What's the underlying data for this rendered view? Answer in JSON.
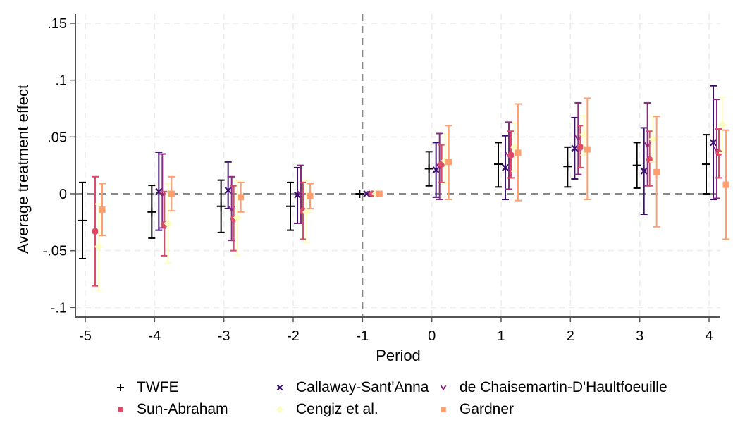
{
  "chart_data": {
    "type": "scatter",
    "subtype": "event-study coefficient plot with confidence intervals",
    "title": "",
    "xlabel": "Period",
    "ylabel": "Average treatment effect",
    "xlim": [
      -5.25,
      4.25
    ],
    "ylim": [
      -0.108,
      0.16
    ],
    "x_ticks": [
      -5,
      -4,
      -3,
      -2,
      -1,
      0,
      1,
      2,
      3,
      4
    ],
    "x_tick_labels": [
      "-5",
      "-4",
      "-3",
      "-2",
      "-1",
      "0",
      "1",
      "2",
      "3",
      "4"
    ],
    "y_ticks": [
      -0.1,
      -0.05,
      0,
      0.05,
      0.1,
      0.15
    ],
    "y_tick_labels": [
      "-.1",
      "-.05",
      "0",
      ".05",
      ".1",
      ".15"
    ],
    "grid": true,
    "reference_lines": [
      {
        "axis": "y",
        "value": 0,
        "style": "dashed"
      },
      {
        "axis": "x",
        "value": -1,
        "style": "dashed"
      }
    ],
    "legend_position": "bottom",
    "series": [
      {
        "name": "TWFE",
        "marker": "plus",
        "color": "#000000",
        "x": [
          -5,
          -4,
          -3,
          -2,
          -1,
          0,
          1,
          2,
          3,
          4
        ],
        "y": [
          -0.0235,
          -0.016,
          -0.011,
          -0.011,
          0.0,
          0.022,
          0.026,
          0.024,
          0.025,
          0.026
        ],
        "ci_low": [
          -0.057,
          -0.039,
          -0.034,
          -0.032,
          0.0,
          0.007,
          0.006,
          0.006,
          0.005,
          0.0
        ],
        "ci_high": [
          0.01,
          0.0074,
          0.012,
          0.01,
          0.0,
          0.037,
          0.045,
          0.041,
          0.045,
          0.052
        ]
      },
      {
        "name": "Callaway-Sant'Anna",
        "marker": "x",
        "color": "#3b0f70",
        "x": [
          -5,
          -4,
          -3,
          -2,
          -1,
          0,
          1,
          2,
          3,
          4
        ],
        "y": [
          null,
          0.002,
          0.003,
          -0.001,
          0.0,
          0.021,
          0.023,
          0.04,
          0.02,
          0.045
        ],
        "ci_low": [
          null,
          -0.032,
          -0.013,
          -0.026,
          0.0,
          -0.003,
          -0.005,
          0.013,
          -0.018,
          -0.005
        ],
        "ci_high": [
          null,
          0.0366,
          0.028,
          0.023,
          0.0,
          0.045,
          0.051,
          0.067,
          0.058,
          0.095
        ]
      },
      {
        "name": "de Chaisemartin-D'Haultfoeuille",
        "marker": "v",
        "color": "#8c2981",
        "x": [
          -5,
          -4,
          -3,
          -2,
          -1,
          0,
          1,
          2,
          3,
          4
        ],
        "y": [
          null,
          0.0,
          -0.013,
          0.0,
          0.0,
          0.024,
          0.034,
          0.049,
          0.043,
          0.039
        ],
        "ci_low": [
          null,
          -0.03,
          -0.041,
          -0.026,
          0.0,
          -0.005,
          0.004,
          0.017,
          0.007,
          -0.004
        ],
        "ci_high": [
          null,
          0.035,
          0.015,
          0.025,
          0.0,
          0.053,
          0.063,
          0.08,
          0.08,
          0.083
        ]
      },
      {
        "name": "Sun-Abraham",
        "marker": "circle",
        "color": "#de4968",
        "x": [
          -5,
          -4,
          -3,
          -2,
          -1,
          0,
          1,
          2,
          3,
          4
        ],
        "y": [
          -0.033,
          -0.027,
          -0.022,
          -0.015,
          0.0,
          0.026,
          0.034,
          0.041,
          0.03,
          0.036
        ],
        "ci_low": [
          -0.081,
          -0.0545,
          -0.05,
          -0.04,
          0.0,
          0.01,
          0.014,
          0.023,
          0.007,
          0.014
        ],
        "ci_high": [
          0.015,
          0.002,
          0.007,
          0.01,
          0.0,
          0.043,
          0.055,
          0.06,
          0.055,
          0.057
        ]
      },
      {
        "name": "Cengiz et al.",
        "marker": "diamond",
        "color": "#fcfdbf",
        "x": [
          -5,
          -4,
          -3,
          -2,
          -1,
          0,
          1,
          2,
          3,
          4
        ],
        "y": [
          -0.0465,
          -0.026,
          -0.021,
          -0.016,
          0.0,
          0.029,
          0.041,
          0.052,
          0.048,
          0.061
        ],
        "ci_low": [
          -0.085,
          -0.061,
          -0.054,
          -0.043,
          0.0,
          0.009,
          0.02,
          0.034,
          0.028,
          0.036
        ],
        "ci_high": [
          -0.009,
          0.0087,
          0.011,
          0.012,
          0.0,
          0.052,
          0.062,
          0.069,
          0.068,
          0.085
        ]
      },
      {
        "name": "Gardner",
        "marker": "square",
        "color": "#fe9f6d",
        "x": [
          -5,
          -4,
          -3,
          -2,
          -1,
          0,
          1,
          2,
          3,
          4
        ],
        "y": [
          -0.014,
          0.0,
          -0.003,
          -0.002,
          0.0,
          0.028,
          0.036,
          0.039,
          0.019,
          0.008
        ],
        "ci_low": [
          -0.0366,
          -0.015,
          -0.016,
          -0.013,
          0.0,
          -0.005,
          -0.006,
          -0.005,
          -0.029,
          -0.04
        ],
        "ci_high": [
          0.009,
          0.015,
          0.01,
          0.009,
          0.0,
          0.06,
          0.079,
          0.084,
          0.068,
          0.056
        ]
      }
    ]
  },
  "legend": {
    "items": [
      {
        "label": "TWFE",
        "marker": "plus",
        "color": "#000000"
      },
      {
        "label": "Callaway-Sant'Anna",
        "marker": "x",
        "color": "#3b0f70"
      },
      {
        "label": "de Chaisemartin-D'Haultfoeuille",
        "marker": "v",
        "color": "#8c2981"
      },
      {
        "label": "Sun-Abraham",
        "marker": "circle",
        "color": "#de4968"
      },
      {
        "label": "Cengiz et al.",
        "marker": "diamond",
        "color": "#fcfdbf"
      },
      {
        "label": "Gardner",
        "marker": "square",
        "color": "#fe9f6d"
      }
    ]
  }
}
